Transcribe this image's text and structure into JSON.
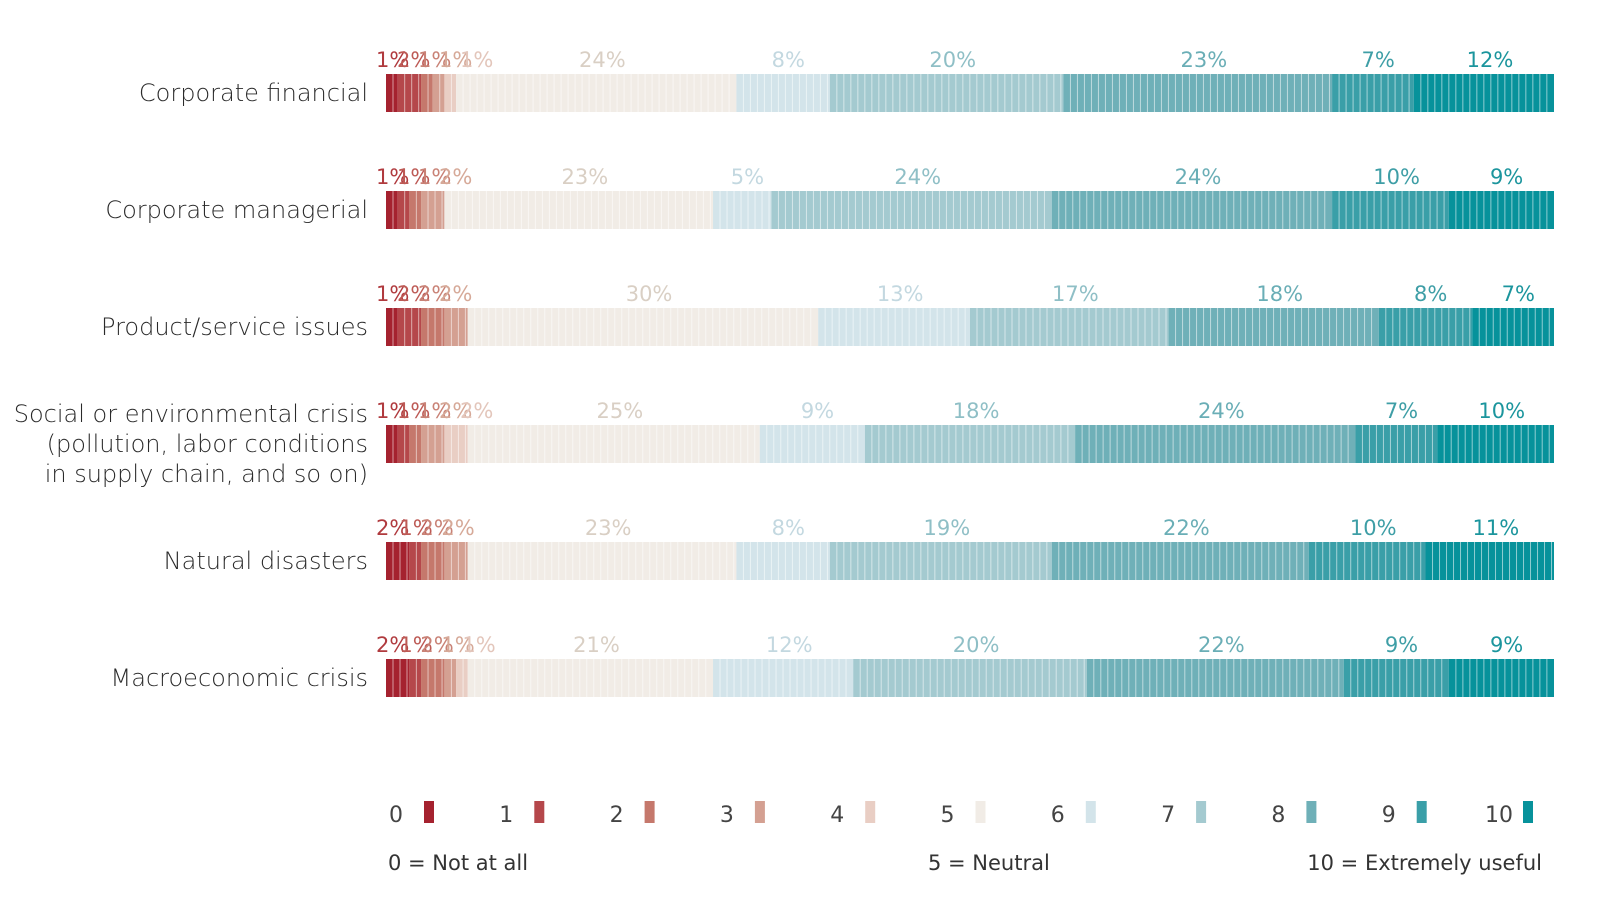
{
  "chart_data": {
    "type": "bar",
    "stacked": "horizontal-100%",
    "categories": [
      [
        "Corporate financial"
      ],
      [
        "Corporate managerial"
      ],
      [
        "Product/service issues"
      ],
      [
        "Social or environmental crisis",
        "(pollution, labor conditions",
        "in supply chain, and so on)"
      ],
      [
        "Natural disasters"
      ],
      [
        "Macroeconomic crisis"
      ]
    ],
    "series": [
      {
        "name": "0",
        "values": [
          1,
          1,
          1,
          1,
          2,
          2
        ]
      },
      {
        "name": "1",
        "values": [
          2,
          1,
          2,
          1,
          1,
          1
        ]
      },
      {
        "name": "2",
        "values": [
          1,
          1,
          2,
          1,
          2,
          2
        ]
      },
      {
        "name": "3",
        "values": [
          1,
          2,
          2,
          2,
          2,
          1
        ]
      },
      {
        "name": "4",
        "values": [
          1,
          0,
          0,
          2,
          0,
          1
        ]
      },
      {
        "name": "5",
        "values": [
          24,
          23,
          30,
          25,
          23,
          21
        ]
      },
      {
        "name": "6",
        "values": [
          8,
          5,
          13,
          9,
          8,
          12
        ]
      },
      {
        "name": "7",
        "values": [
          20,
          24,
          17,
          18,
          19,
          20
        ]
      },
      {
        "name": "8",
        "values": [
          23,
          24,
          18,
          24,
          22,
          22
        ]
      },
      {
        "name": "9",
        "values": [
          7,
          10,
          8,
          7,
          10,
          9
        ]
      },
      {
        "name": "10",
        "values": [
          12,
          9,
          7,
          10,
          11,
          9
        ]
      }
    ],
    "value_labels": [
      [
        "1%",
        "2%",
        "1%",
        "1%",
        "1%",
        "24%",
        "8%",
        "20%",
        "23%",
        "7%",
        "12%"
      ],
      [
        "1%",
        "1%",
        "1%",
        "2%",
        "",
        "23%",
        "5%",
        "24%",
        "24%",
        "10%",
        "9%"
      ],
      [
        "1%",
        "2%",
        "2%",
        "2%",
        "",
        "30%",
        "13%",
        "17%",
        "18%",
        "8%",
        "7%"
      ],
      [
        "1%",
        "1%",
        "1%",
        "2%",
        "2%",
        "25%",
        "9%",
        "18%",
        "24%",
        "7%",
        "10%"
      ],
      [
        "2%",
        "1%",
        "2%",
        "2%",
        "",
        "23%",
        "8%",
        "19%",
        "22%",
        "10%",
        "11%"
      ],
      [
        "2%",
        "1%",
        "2%",
        "1%",
        "1%",
        "21%",
        "12%",
        "20%",
        "22%",
        "9%",
        "9%"
      ]
    ],
    "colors": [
      "#a5222f",
      "#b5474b",
      "#c5786c",
      "#d4a092",
      "#e9cec4",
      "#f1ece6",
      "#d3e4ea",
      "#a4cad0",
      "#6fb0b8",
      "#3a9fa8",
      "#07929b"
    ],
    "label_colors": [
      "#b03a3e",
      "#bd5a55",
      "#c98276",
      "#d6a998",
      "#e3c6bb",
      "#d9cfc4",
      "#c3d8e0",
      "#8fbfc6",
      "#6aaeb6",
      "#3e9ea6",
      "#1b959d"
    ],
    "legend": {
      "items": [
        "0",
        "1",
        "2",
        "3",
        "4",
        "5",
        "6",
        "7",
        "8",
        "9",
        "10"
      ],
      "note_left": "0 = Not at all",
      "note_mid": "5 = Neutral",
      "note_right": "10 = Extremely useful"
    }
  }
}
